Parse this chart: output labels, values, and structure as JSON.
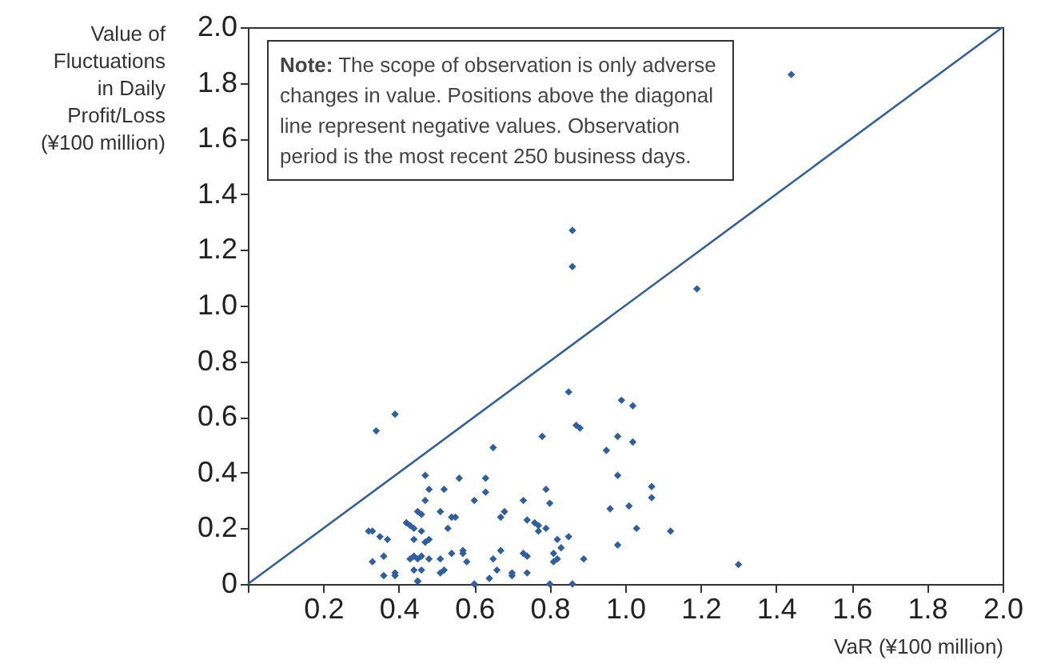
{
  "chart_data": {
    "type": "scatter",
    "ylabel": "Value of\nFluctuations\nin Daily\nProfit/Loss\n(¥100 million)",
    "xlabel": "VaR (¥100 million)",
    "annotations": [
      "Note: The scope of observation is only adverse changes in value. Positions above the diagonal line represent negative values. Observation period is the most recent 250 business days."
    ],
    "xlim": [
      0,
      2.0
    ],
    "ylim": [
      0,
      2.0
    ],
    "xticks": [
      {
        "value": 0,
        "label": null
      },
      0.2,
      0.4,
      0.6,
      0.8,
      {
        "value": 1,
        "label": "1.0"
      },
      1.2,
      1.4,
      1.6,
      1.8,
      {
        "value": 2,
        "label": "2.0"
      }
    ],
    "yticks": [
      0,
      0.2,
      0.4,
      0.6,
      0.8,
      {
        "value": 1,
        "label": "1.0"
      },
      1.2,
      1.4,
      1.6,
      1.8,
      {
        "value": 2,
        "label": "2.0"
      }
    ],
    "grid": false,
    "series": [
      {
        "type": "scatter",
        "marker": "diamond",
        "color": "#2e5fa3",
        "x": [
          0.34,
          0.39,
          0.85,
          0.78,
          0.87,
          0.88,
          0.65,
          0.47,
          0.48,
          0.47,
          0.45,
          0.46,
          0.51,
          0.52,
          0.56,
          0.63,
          0.63,
          0.6,
          0.54,
          0.55,
          0.53,
          0.42,
          0.43,
          0.44,
          0.46,
          0.32,
          0.33,
          0.35,
          0.37,
          0.44,
          0.47,
          0.48,
          0.36,
          0.33,
          0.36,
          0.39,
          0.39,
          0.43,
          0.44,
          0.45,
          0.46,
          0.48,
          0.44,
          0.46,
          0.45,
          0.45,
          0.51,
          0.52,
          0.51,
          0.54,
          0.57,
          0.57,
          0.58,
          0.6,
          0.64,
          0.66,
          0.65,
          0.67,
          0.68,
          0.67,
          0.73,
          0.79,
          0.8,
          0.74,
          0.76,
          0.77,
          0.77,
          0.79,
          0.73,
          0.74,
          0.7,
          0.74,
          0.7,
          0.8,
          0.86,
          0.82,
          0.85,
          0.83,
          0.81,
          0.82,
          0.81,
          0.89,
          0.99,
          1.02,
          0.98,
          1.02,
          0.95,
          0.98,
          1.07,
          1.07,
          0.96,
          1.01,
          1.03,
          0.98,
          1.12,
          1.3,
          0.86,
          0.86,
          1.19,
          1.44
        ],
        "values": [
          0.55,
          0.61,
          0.69,
          0.53,
          0.57,
          0.56,
          0.49,
          0.39,
          0.34,
          0.3,
          0.26,
          0.25,
          0.26,
          0.34,
          0.38,
          0.38,
          0.33,
          0.3,
          0.24,
          0.24,
          0.2,
          0.22,
          0.21,
          0.2,
          0.19,
          0.19,
          0.19,
          0.17,
          0.16,
          0.16,
          0.15,
          0.16,
          0.1,
          0.08,
          0.03,
          0.04,
          0.03,
          0.09,
          0.1,
          0.09,
          0.1,
          0.09,
          0.05,
          0.05,
          0.01,
          0.01,
          0.04,
          0.05,
          0.09,
          0.11,
          0.12,
          0.11,
          0.08,
          0.0,
          0.02,
          0.05,
          0.09,
          0.12,
          0.26,
          0.24,
          0.3,
          0.34,
          0.29,
          0.23,
          0.22,
          0.21,
          0.19,
          0.2,
          0.11,
          0.1,
          0.04,
          0.04,
          0.03,
          0.0,
          0.0,
          0.16,
          0.17,
          0.13,
          0.11,
          0.09,
          0.08,
          0.09,
          0.66,
          0.64,
          0.53,
          0.51,
          0.48,
          0.39,
          0.35,
          0.31,
          0.27,
          0.28,
          0.2,
          0.14,
          0.19,
          0.07,
          1.27,
          1.14,
          1.06,
          1.83
        ]
      },
      {
        "type": "line",
        "color": "#2e5fa3",
        "x": [
          0,
          2.0
        ],
        "values": [
          0,
          2.0
        ]
      }
    ]
  }
}
